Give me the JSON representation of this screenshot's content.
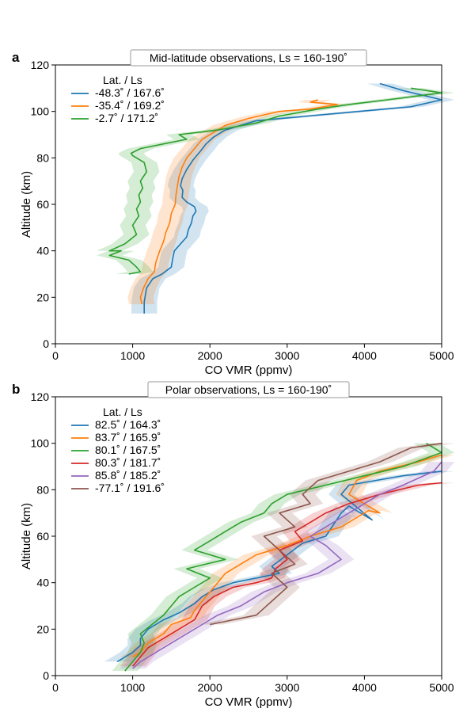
{
  "figure": {
    "panel_letters": [
      "a",
      "b"
    ]
  },
  "chart_data": [
    {
      "type": "line",
      "panel": "a",
      "title": "Mid-latitude observations, Ls = 160-190˚",
      "xlabel": "CO VMR (ppmv)",
      "ylabel": "Altitude (km)",
      "xlim": [
        0,
        5000
      ],
      "ylim": [
        0,
        120
      ],
      "xticks": [
        0,
        1000,
        2000,
        3000,
        4000,
        5000
      ],
      "yticks": [
        0,
        20,
        40,
        60,
        80,
        100,
        120
      ],
      "grid": false,
      "legend": {
        "title": "Lat. / Ls",
        "placement": "top-left"
      },
      "series": [
        {
          "name": "-48.3˚ / 167.6˚",
          "color": "#1f77b4",
          "x": [
            1150,
            1150,
            1180,
            1260,
            1380,
            1500,
            1520,
            1540,
            1620,
            1700,
            1720,
            1760,
            1780,
            1820,
            1800,
            1700,
            1640,
            1650,
            1620,
            1640,
            1700,
            1780,
            1880,
            1950,
            2050,
            2200,
            2600,
            3600,
            4600,
            5000,
            4500,
            4200
          ],
          "y": [
            13,
            18,
            24,
            28,
            30,
            33,
            37,
            40,
            43,
            46,
            49,
            52,
            55,
            57,
            59,
            61,
            63,
            66,
            68,
            71,
            75,
            79,
            83,
            86,
            89,
            92,
            96,
            99,
            102,
            105,
            109,
            112
          ]
        },
        {
          "name": "-35.4˚ / 169.2˚",
          "color": "#ff7f0e",
          "x": [
            1120,
            1100,
            1140,
            1200,
            1280,
            1300,
            1350,
            1400,
            1430,
            1480,
            1500,
            1550,
            1560,
            1580,
            1600,
            1640,
            1700,
            1800,
            1900,
            2050,
            2200,
            2500,
            2900,
            3300,
            3650,
            3300,
            3400
          ],
          "y": [
            17,
            20,
            24,
            28,
            31,
            35,
            40,
            44,
            48,
            52,
            56,
            60,
            64,
            68,
            72,
            76,
            80,
            84,
            88,
            91,
            94,
            97,
            100,
            101,
            103,
            104,
            105
          ]
        },
        {
          "name": "-2.7˚ / 171.2˚",
          "color": "#2ca02c",
          "x": [
            950,
            1100,
            1050,
            950,
            700,
            850,
            700,
            900,
            1050,
            1000,
            1080,
            1050,
            1100,
            1080,
            1130,
            1100,
            1180,
            1150,
            1000,
            980,
            1100,
            1400,
            1700,
            1600,
            2100,
            2600,
            2900,
            3400,
            3800,
            4300,
            5000,
            4600
          ],
          "y": [
            30,
            31,
            33,
            36,
            38,
            40,
            40,
            43,
            47,
            51,
            55,
            58,
            61,
            64,
            67,
            70,
            74,
            78,
            81,
            82,
            84,
            86,
            88,
            90,
            92,
            95,
            98,
            101,
            103,
            105,
            108,
            110
          ]
        }
      ]
    },
    {
      "type": "line",
      "panel": "b",
      "title": "Polar observations, Ls = 160-190˚",
      "xlabel": "CO VMR (ppmv)",
      "ylabel": "Altitude (km)",
      "xlim": [
        0,
        5000
      ],
      "ylim": [
        0,
        120
      ],
      "xticks": [
        0,
        1000,
        2000,
        3000,
        4000,
        5000
      ],
      "yticks": [
        0,
        20,
        40,
        60,
        80,
        100,
        120
      ],
      "grid": false,
      "legend": {
        "title": "Lat. / Ls",
        "placement": "top-left"
      },
      "series": [
        {
          "name": "82.5˚ / 164.3˚",
          "color": "#1f77b4",
          "x": [
            800,
            900,
            1000,
            1100,
            1100,
            1200,
            1400,
            1600,
            1800,
            1900,
            2050,
            2300,
            2600,
            2900,
            2800,
            3000,
            3200,
            3500,
            3600,
            3700,
            3800,
            4100,
            3700,
            3800,
            4500,
            5000
          ],
          "y": [
            6,
            8,
            10,
            13,
            16,
            20,
            24,
            27,
            31,
            34,
            37,
            40,
            42,
            44,
            47,
            52,
            57,
            60,
            65,
            70,
            73,
            67,
            78,
            82,
            86,
            88
          ]
        },
        {
          "name": "83.7˚ / 165.9˚",
          "color": "#ff7f0e",
          "x": [
            1000,
            1100,
            1200,
            1400,
            1500,
            1750,
            1800,
            1900,
            2000,
            2100,
            2200,
            2400,
            2600,
            3000,
            3300,
            3500,
            3700,
            3900,
            4050,
            4200,
            3800,
            3900,
            4200,
            4700,
            5000
          ],
          "y": [
            8,
            10,
            14,
            18,
            22,
            25,
            28,
            32,
            36,
            40,
            44,
            48,
            52,
            56,
            60,
            62,
            64,
            68,
            71,
            70,
            78,
            84,
            88,
            92,
            95
          ]
        },
        {
          "name": "80.1˚ / 167.5˚",
          "color": "#2ca02c",
          "x": [
            900,
            1000,
            1100,
            1150,
            1100,
            1250,
            1400,
            1500,
            1600,
            1800,
            2000,
            1700,
            2200,
            1800,
            2000,
            2200,
            2400,
            2700,
            2800,
            3000,
            3500,
            4000,
            4500,
            5000,
            4800
          ],
          "y": [
            2,
            6,
            10,
            14,
            18,
            22,
            26,
            30,
            34,
            38,
            42,
            46,
            50,
            54,
            58,
            62,
            66,
            70,
            74,
            78,
            82,
            86,
            90,
            96,
            100
          ]
        },
        {
          "name": "80.3˚ / 181.7˚",
          "color": "#d62728",
          "x": [
            1000,
            1100,
            1200,
            1400,
            1600,
            1800,
            1900,
            2050,
            2300,
            2600,
            2800,
            2850,
            3000,
            2900,
            3200,
            3100,
            3300,
            3500,
            3800,
            4200,
            4700,
            5000
          ],
          "y": [
            4,
            8,
            12,
            16,
            20,
            24,
            30,
            34,
            38,
            40,
            42,
            46,
            50,
            54,
            58,
            62,
            66,
            70,
            74,
            78,
            82,
            83
          ]
        },
        {
          "name": "85.8˚ / 185.2˚",
          "color": "#9467bd",
          "x": [
            1000,
            1100,
            1300,
            1500,
            1700,
            1900,
            2100,
            2400,
            2700,
            3000,
            3400,
            3700,
            3500,
            3300,
            3600,
            3900,
            4200,
            4500,
            4900,
            5000
          ],
          "y": [
            3,
            6,
            10,
            14,
            18,
            22,
            26,
            30,
            36,
            40,
            44,
            50,
            56,
            60,
            66,
            72,
            78,
            82,
            88,
            92
          ]
        },
        {
          "name": "-77.1˚ / 191.6˚",
          "color": "#8c564b",
          "x": [
            2000,
            2300,
            2600,
            2800,
            3000,
            2800,
            3100,
            2900,
            2700,
            3100,
            2900,
            3300,
            3200,
            3400,
            3800,
            4200,
            4600,
            5000
          ],
          "y": [
            22,
            24,
            26,
            32,
            38,
            44,
            48,
            54,
            60,
            64,
            70,
            74,
            78,
            84,
            88,
            92,
            98,
            100
          ]
        }
      ]
    }
  ]
}
